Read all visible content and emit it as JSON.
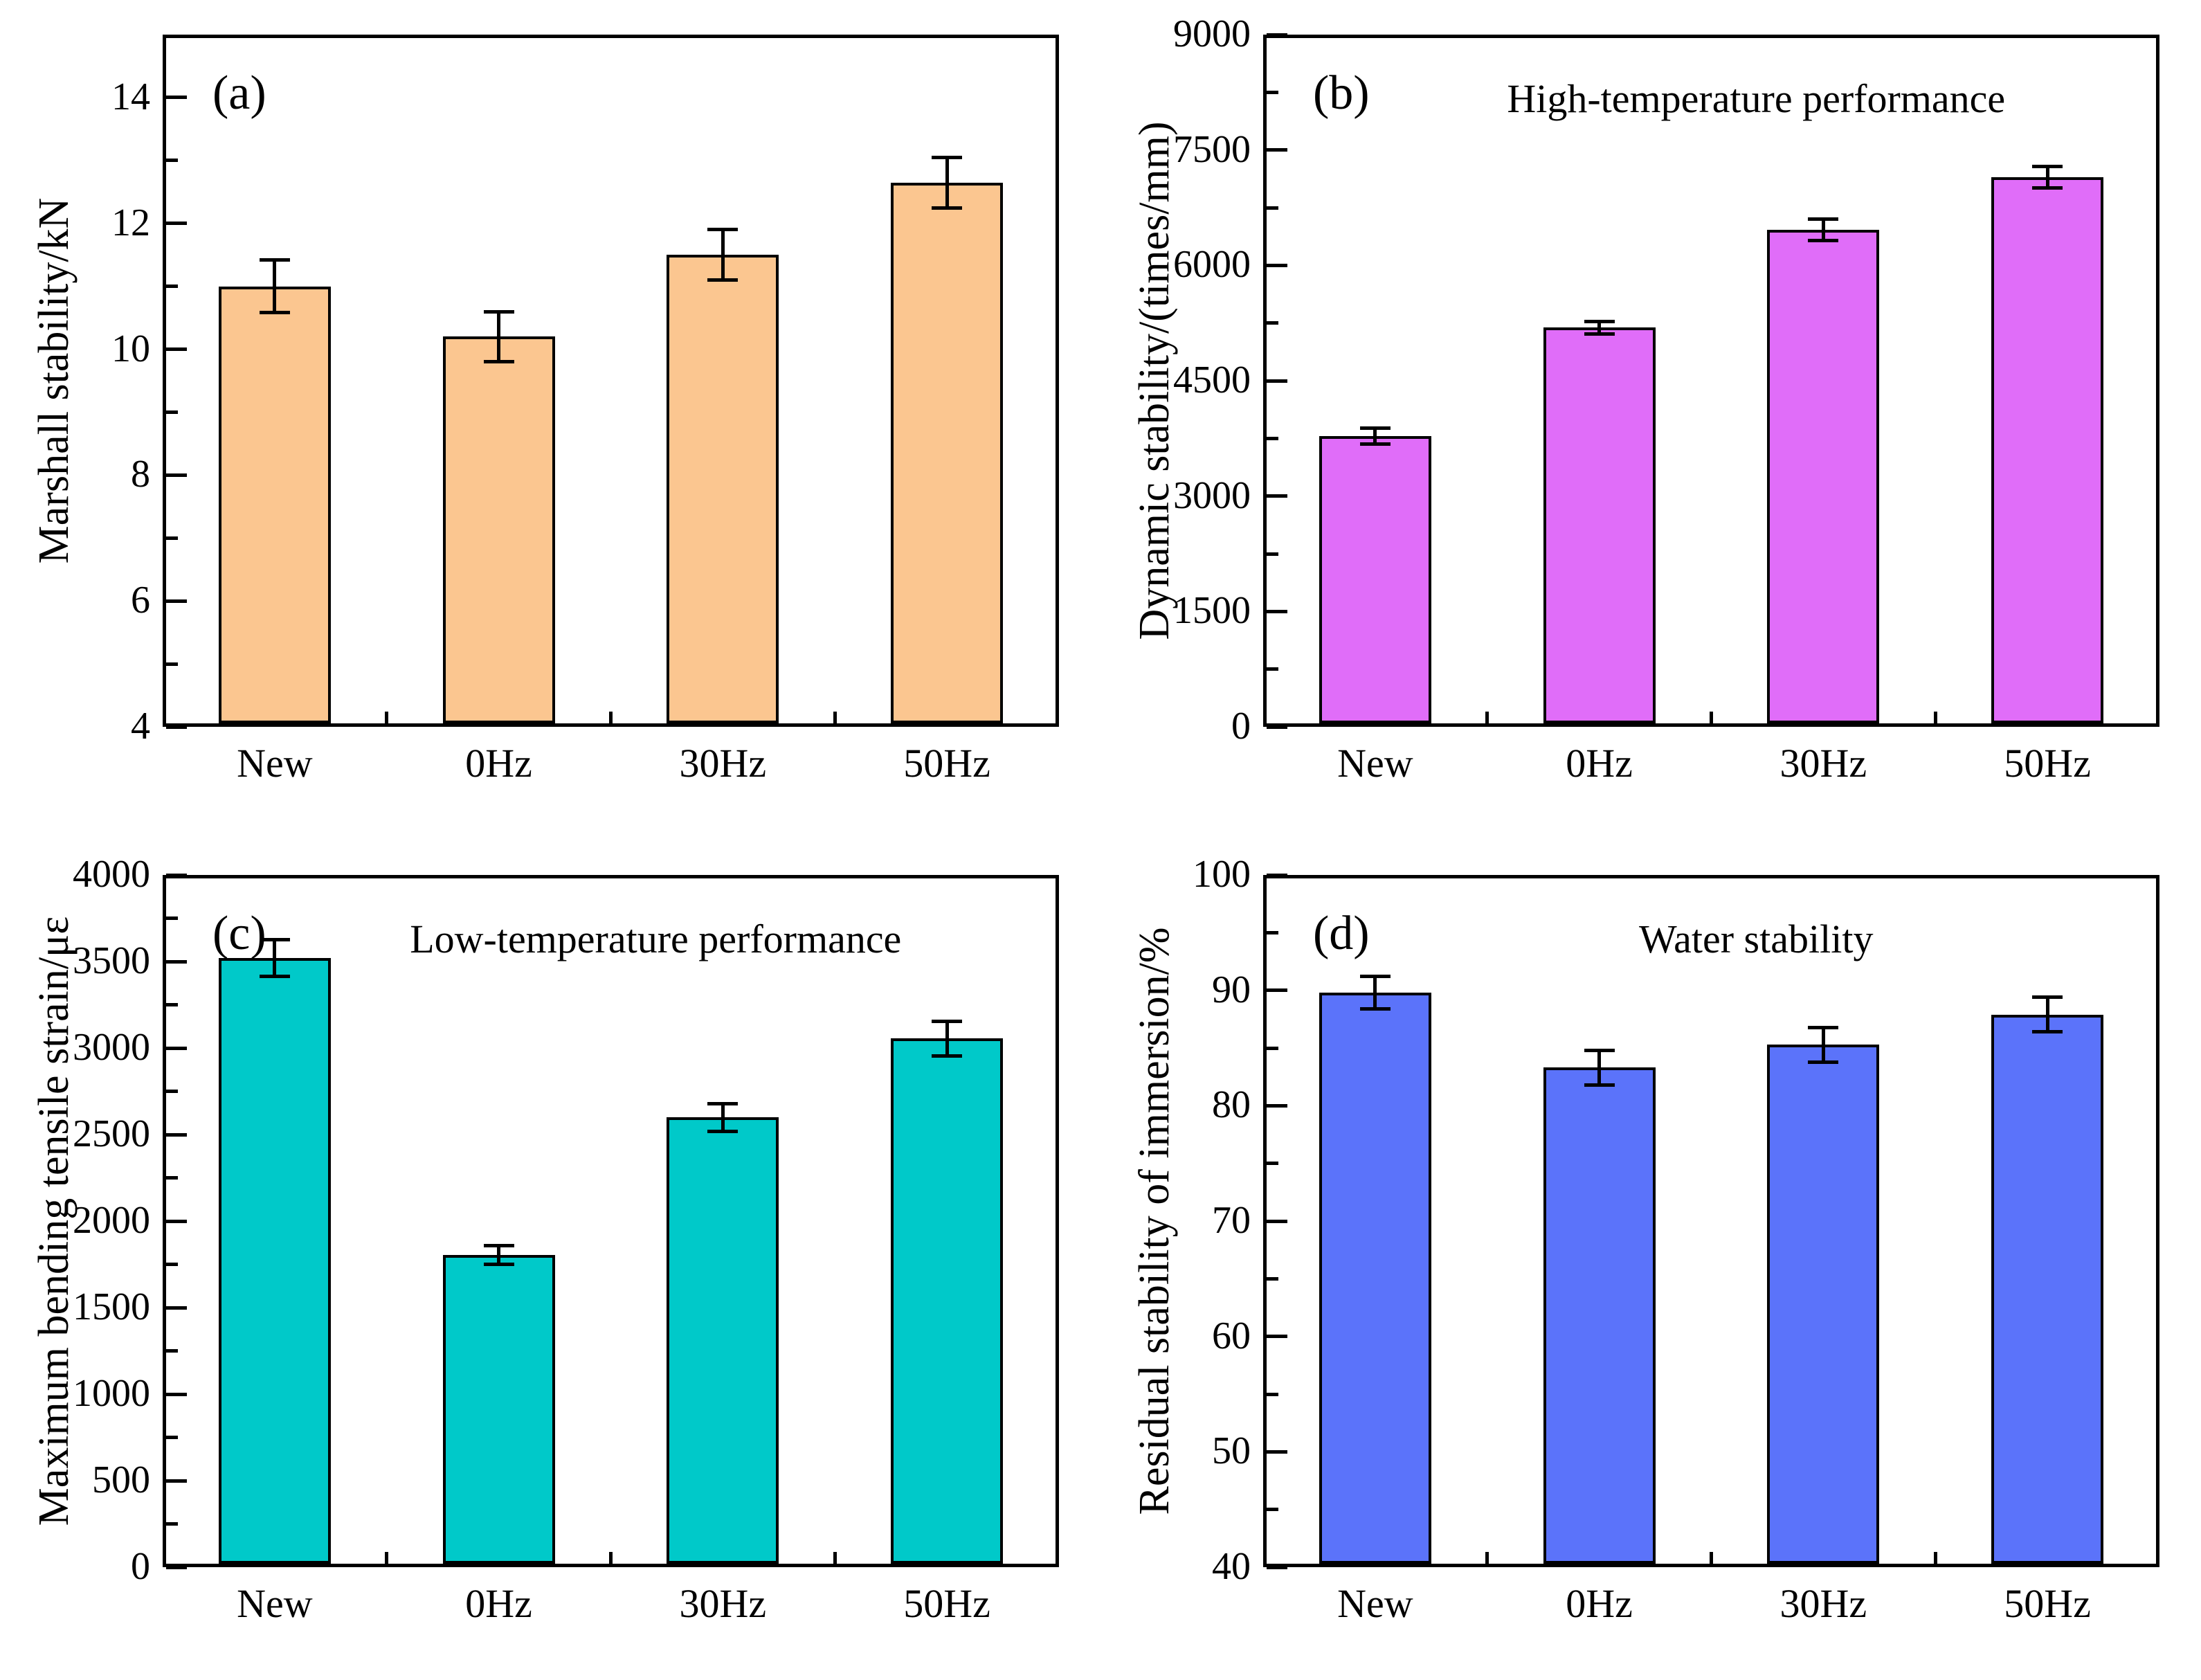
{
  "figure_title": "",
  "chart_data": [
    {
      "type": "bar",
      "panel_label": "(a)",
      "title": "",
      "ylabel": "Marshall stability/kN",
      "xlabel": "",
      "categories": [
        "New",
        "0Hz",
        "30Hz",
        "50Hz"
      ],
      "values": [
        11.0,
        10.2,
        11.5,
        12.65
      ],
      "errors": [
        0.42,
        0.4,
        0.4,
        0.4
      ],
      "ylim": [
        4,
        15
      ],
      "yticks": [
        4,
        6,
        8,
        10,
        12,
        14
      ],
      "yminor": [
        5,
        7,
        9,
        11,
        13
      ],
      "bar_color": "#FBC690",
      "legend": "none",
      "grid": "off"
    },
    {
      "type": "bar",
      "panel_label": "(b)",
      "title": "High-temperature performance",
      "ylabel": "Dynamic stability/(times/mm)",
      "xlabel": "",
      "categories": [
        "New",
        "0Hz",
        "30Hz",
        "50Hz"
      ],
      "values": [
        3780,
        5190,
        6460,
        7150
      ],
      "errors": [
        100,
        80,
        140,
        140
      ],
      "ylim": [
        0,
        9000
      ],
      "yticks": [
        0,
        1500,
        3000,
        4500,
        6000,
        7500,
        9000
      ],
      "yminor": [
        750,
        2250,
        3750,
        5250,
        6750,
        8250
      ],
      "bar_color": "#E06DF9",
      "legend": "none",
      "grid": "off"
    },
    {
      "type": "bar",
      "panel_label": "(c)",
      "title": "Low-temperature performance",
      "ylabel": "Maximum bending tensile strain/με",
      "xlabel": "",
      "categories": [
        "New",
        "0Hz",
        "30Hz",
        "50Hz"
      ],
      "values": [
        3520,
        1805,
        2600,
        3055
      ],
      "errors": [
        105,
        55,
        80,
        100
      ],
      "ylim": [
        0,
        4000
      ],
      "yticks": [
        0,
        500,
        1000,
        1500,
        2000,
        2500,
        3000,
        3500,
        4000
      ],
      "yminor": [
        250,
        750,
        1250,
        1750,
        2250,
        2750,
        3250,
        3750
      ],
      "bar_color": "#00C9C9",
      "legend": "none",
      "grid": "off"
    },
    {
      "type": "bar",
      "panel_label": "(d)",
      "title": "Water stability",
      "ylabel": "Residual stability of immersion/%",
      "xlabel": "",
      "categories": [
        "New",
        "0Hz",
        "30Hz",
        "50Hz"
      ],
      "values": [
        89.8,
        83.3,
        85.3,
        87.9
      ],
      "errors": [
        1.4,
        1.5,
        1.5,
        1.5
      ],
      "ylim": [
        40,
        100
      ],
      "yticks": [
        40,
        50,
        60,
        70,
        80,
        90,
        100
      ],
      "yminor": [
        45,
        55,
        65,
        75,
        85,
        95
      ],
      "bar_color": "#5B73FA",
      "legend": "none",
      "grid": "off"
    }
  ]
}
